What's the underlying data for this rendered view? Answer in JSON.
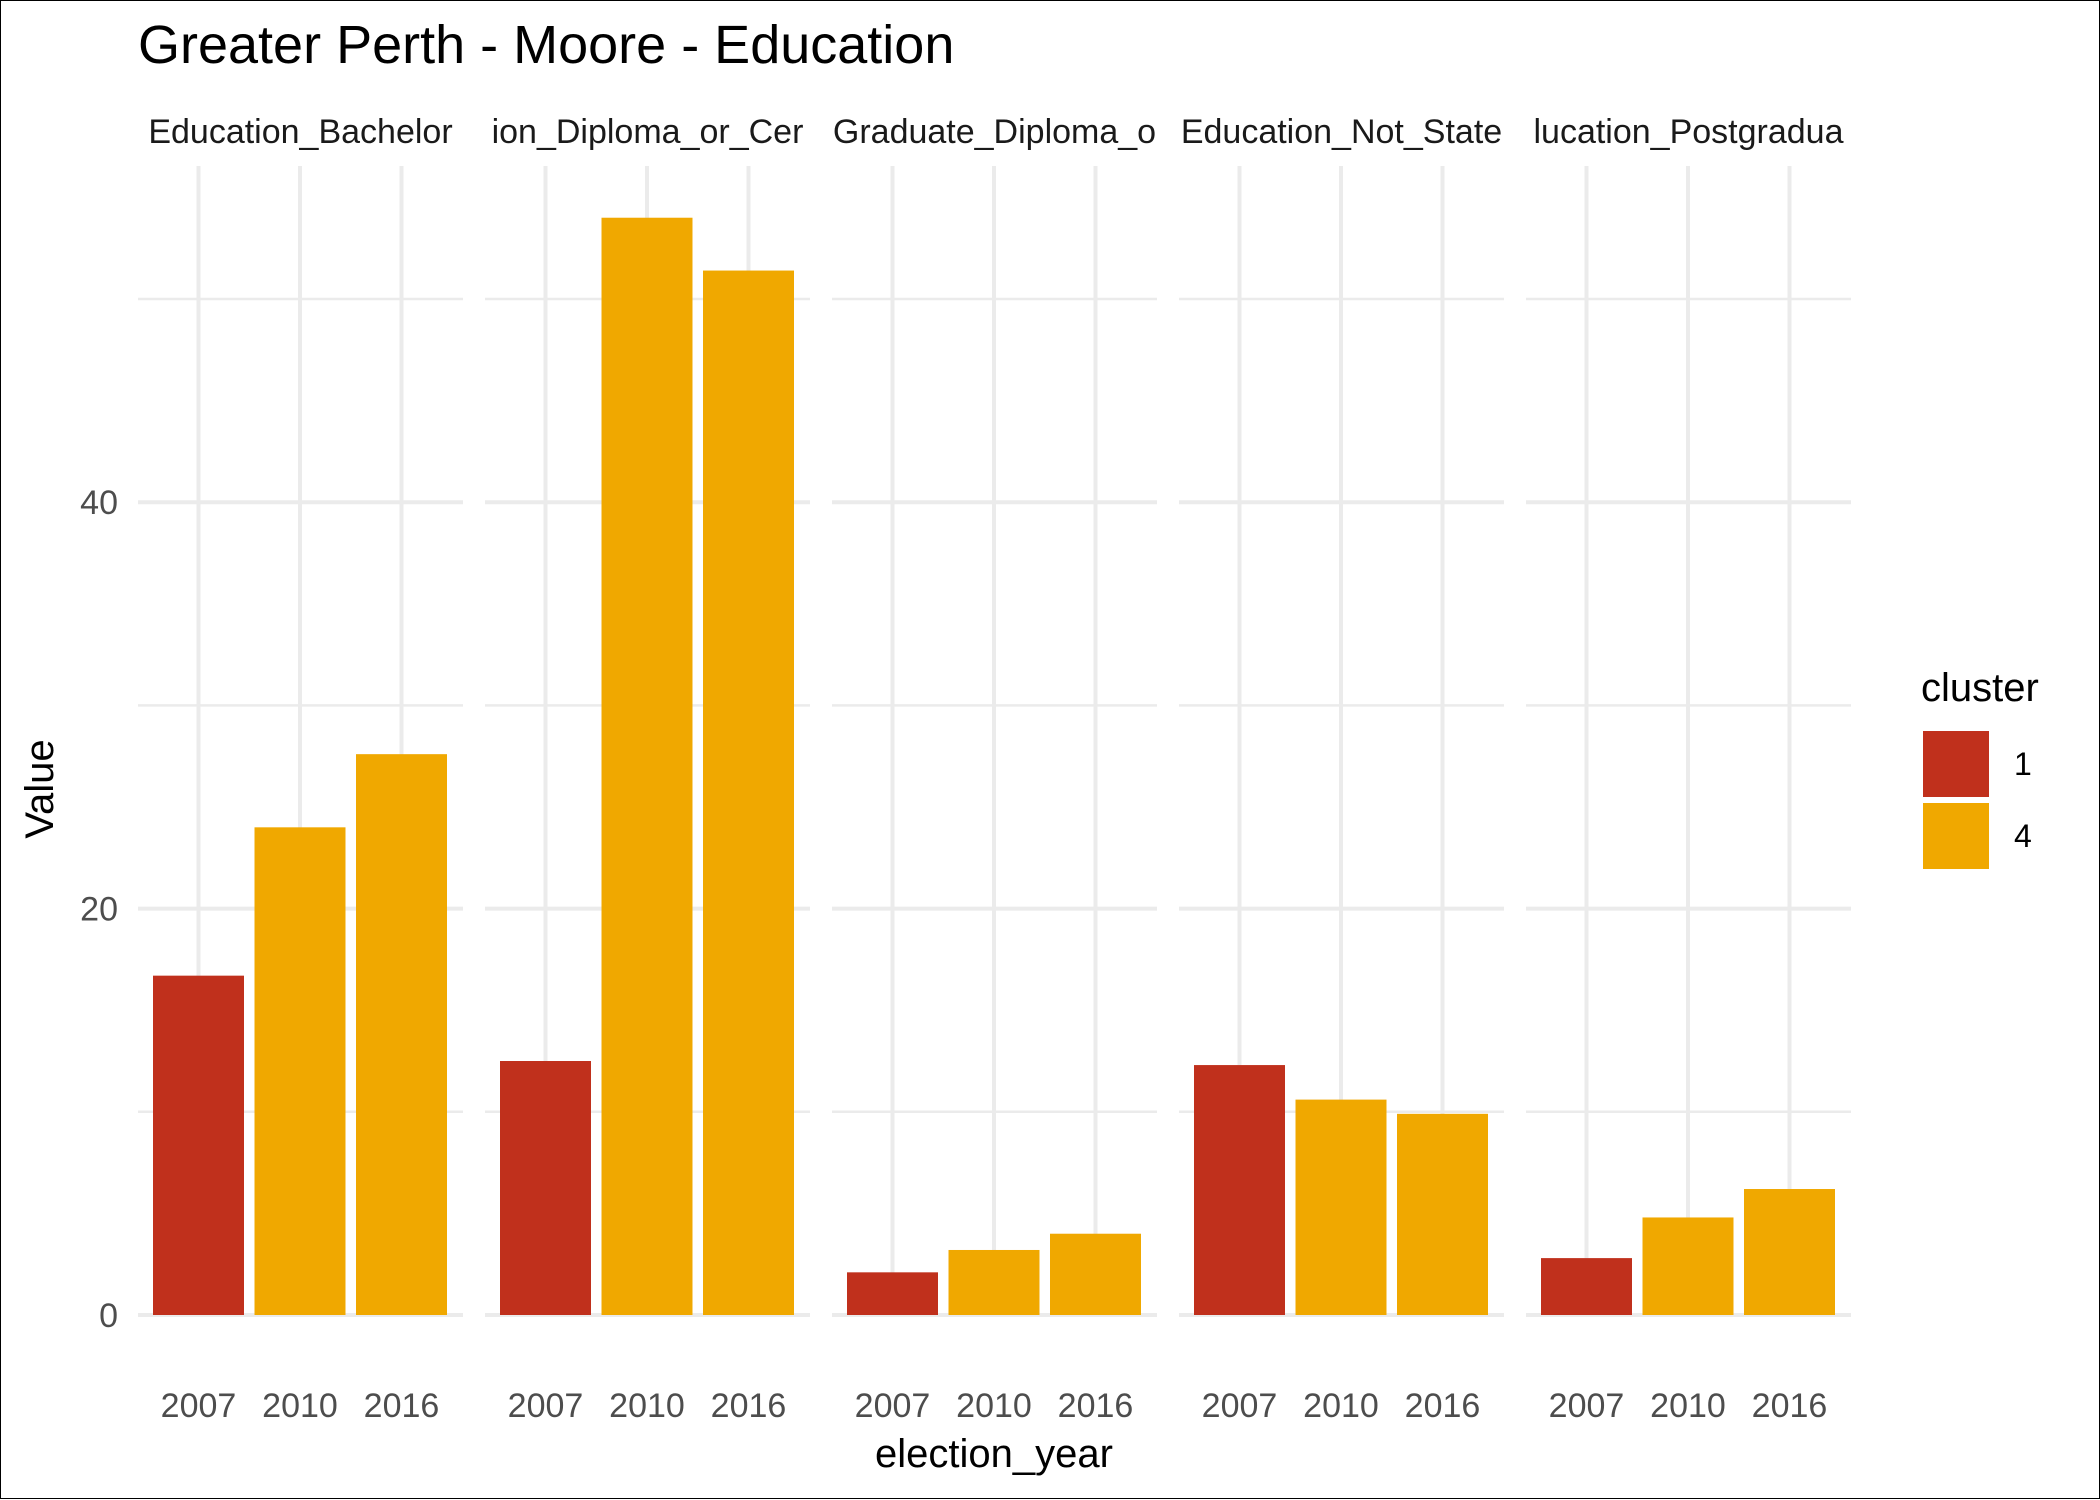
{
  "chart_data": {
    "type": "bar",
    "title": "Greater Perth - Moore - Education",
    "xlabel": "election_year",
    "ylabel": "Value",
    "ylim": [
      0,
      54
    ],
    "yticks": [
      0,
      20,
      40
    ],
    "grid": true,
    "legend": {
      "title": "cluster",
      "position": "right",
      "entries": [
        {
          "label": "1",
          "color": "#C0301C"
        },
        {
          "label": "4",
          "color": "#F0A800"
        }
      ]
    },
    "categories": [
      "2007",
      "2010",
      "2016"
    ],
    "facets": [
      {
        "label": "Education_Bachelor",
        "values": [
          16.7,
          24.0,
          27.6
        ],
        "clusters": [
          "1",
          "4",
          "4"
        ]
      },
      {
        "label": "ion_Diploma_or_Cer",
        "values": [
          12.5,
          54.0,
          51.4
        ],
        "clusters": [
          "1",
          "4",
          "4"
        ]
      },
      {
        "label": "Graduate_Diploma_o",
        "values": [
          2.1,
          3.2,
          4.0
        ],
        "clusters": [
          "1",
          "4",
          "4"
        ]
      },
      {
        "label": "Education_Not_State",
        "values": [
          12.3,
          10.6,
          9.9
        ],
        "clusters": [
          "1",
          "4",
          "4"
        ]
      },
      {
        "label": "lucation_Postgradua",
        "values": [
          2.8,
          4.8,
          6.2
        ],
        "clusters": [
          "1",
          "4",
          "4"
        ]
      }
    ]
  }
}
